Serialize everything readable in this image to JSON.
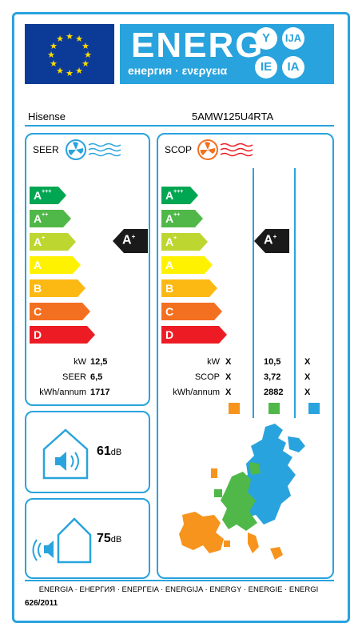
{
  "header": {
    "energy_word": "ENERG",
    "energy_sub": "енергия · ενεργεια",
    "bubbles": [
      "Y",
      "IJA",
      "IE",
      "IA"
    ],
    "colors": {
      "blue": "#29a3dd",
      "eu_flag": "#0c3b97",
      "star": "#ffdd00"
    }
  },
  "product": {
    "brand": "Hisense",
    "model": "5AMW125U4RTA"
  },
  "classes": [
    {
      "letter": "A",
      "sup": "+++",
      "color": "#00a651"
    },
    {
      "letter": "A",
      "sup": "++",
      "color": "#50b848"
    },
    {
      "letter": "A",
      "sup": "+",
      "color": "#bed630"
    },
    {
      "letter": "A",
      "sup": "",
      "color": "#fff200"
    },
    {
      "letter": "B",
      "sup": "",
      "color": "#fdb913"
    },
    {
      "letter": "C",
      "sup": "",
      "color": "#f37021"
    },
    {
      "letter": "D",
      "sup": "",
      "color": "#ed1c24"
    }
  ],
  "cooling": {
    "title": "SEER",
    "rating_letter": "A",
    "rating_sup": "+",
    "rows": [
      {
        "label": "kW",
        "value": "12,5"
      },
      {
        "label": "SEER",
        "value": "6,5"
      },
      {
        "label": "kWh/annum",
        "value": "1717"
      }
    ]
  },
  "heating": {
    "title": "SCOP",
    "rating_letter": "A",
    "rating_sup": "+",
    "rows": [
      {
        "label": "kW",
        "values": [
          "X",
          "10,5",
          "X"
        ]
      },
      {
        "label": "SCOP",
        "values": [
          "X",
          "3,72",
          "X"
        ]
      },
      {
        "label": "kWh/annum",
        "values": [
          "X",
          "2882",
          "X"
        ]
      }
    ],
    "zone_colors": [
      "#f7941d",
      "#50b848",
      "#29a3dd"
    ]
  },
  "noise": {
    "indoor_value": "61",
    "indoor_unit": "dB",
    "outdoor_value": "75",
    "outdoor_unit": "dB"
  },
  "footer": {
    "languages": "ENERGIA · ЕНЕРГИЯ · ΕΝΕΡΓΕΙΑ · ENERGIJA · ENERGY · ENERGIE · ENERGI",
    "regulation": "626/2011"
  }
}
